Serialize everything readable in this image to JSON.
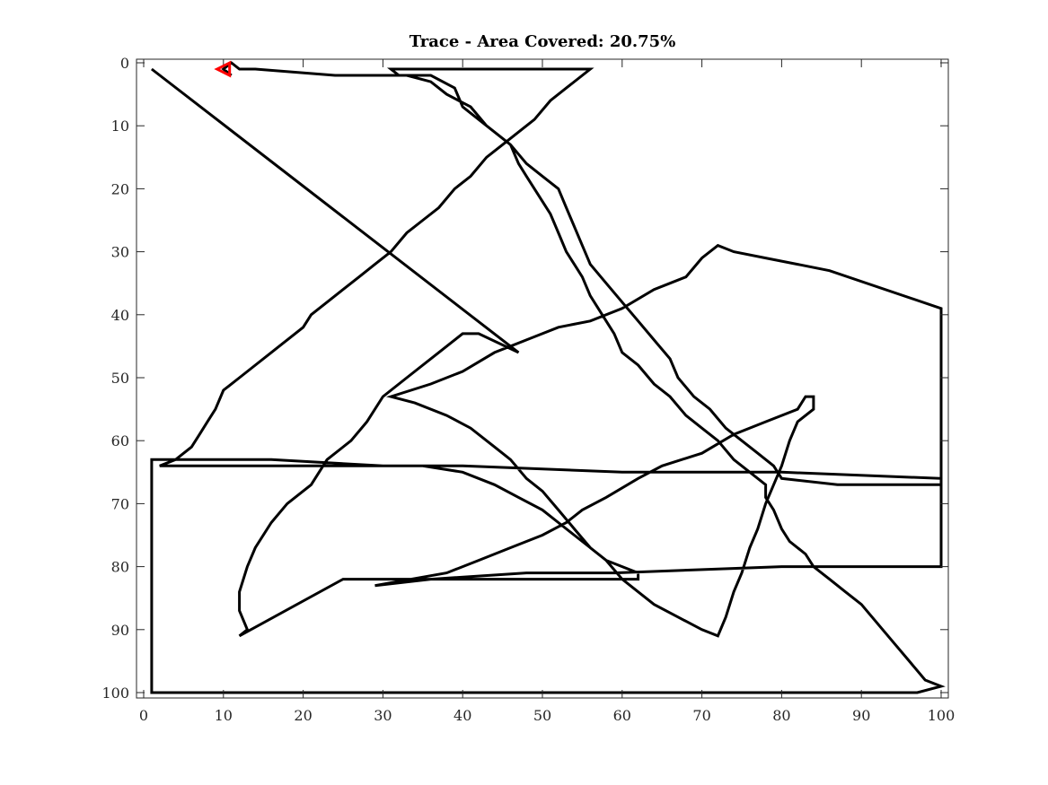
{
  "chart_data": {
    "type": "line",
    "title": "Trace - Area Covered: 20.75%",
    "xlabel": "",
    "ylabel": "",
    "xlim": [
      0,
      100
    ],
    "ylim": [
      0,
      100
    ],
    "y_reversed": true,
    "grid": false,
    "x_ticks": [
      0,
      10,
      20,
      30,
      40,
      50,
      60,
      70,
      80,
      90,
      100
    ],
    "y_ticks": [
      0,
      10,
      20,
      30,
      40,
      50,
      60,
      70,
      80,
      90,
      100
    ],
    "line_color": "#000000",
    "marker_color": "#ff0000",
    "series": [
      {
        "points": [
          [
            47,
            46
          ],
          [
            1,
            1
          ],
          [
            47,
            46
          ],
          [
            42,
            43
          ],
          [
            40,
            43
          ],
          [
            37,
            46
          ],
          [
            33,
            50
          ],
          [
            30,
            53
          ],
          [
            28,
            57
          ],
          [
            26,
            60
          ],
          [
            23,
            63
          ],
          [
            21,
            67
          ],
          [
            18,
            70
          ],
          [
            16,
            73
          ],
          [
            14,
            77
          ],
          [
            13,
            80
          ],
          [
            12,
            84
          ],
          [
            12,
            87
          ],
          [
            13,
            90
          ],
          [
            12,
            91
          ],
          [
            25,
            82
          ],
          [
            47,
            82
          ],
          [
            62,
            82
          ],
          [
            62,
            81
          ],
          [
            58,
            79
          ],
          [
            56,
            77
          ],
          [
            54,
            74
          ],
          [
            52,
            71
          ],
          [
            50,
            68
          ],
          [
            48,
            66
          ],
          [
            46,
            63
          ],
          [
            44,
            61
          ],
          [
            41,
            58
          ],
          [
            38,
            56
          ],
          [
            34,
            54
          ],
          [
            31,
            53
          ],
          [
            36,
            51
          ],
          [
            40,
            49
          ],
          [
            44,
            46
          ],
          [
            48,
            44
          ],
          [
            52,
            42
          ],
          [
            56,
            41
          ],
          [
            60,
            39
          ],
          [
            64,
            36
          ],
          [
            66,
            35
          ],
          [
            68,
            34
          ],
          [
            70,
            31
          ],
          [
            72,
            29
          ],
          [
            74,
            30
          ],
          [
            78,
            31
          ],
          [
            82,
            32
          ],
          [
            86,
            33
          ],
          [
            100,
            39
          ],
          [
            100,
            80
          ],
          [
            80,
            80
          ],
          [
            59,
            81
          ],
          [
            48,
            81
          ],
          [
            36,
            82
          ],
          [
            29,
            83
          ],
          [
            38,
            81
          ],
          [
            42,
            79
          ],
          [
            46,
            77
          ],
          [
            50,
            75
          ],
          [
            53,
            73
          ],
          [
            55,
            71
          ],
          [
            58,
            69
          ],
          [
            62,
            66
          ],
          [
            65,
            64
          ],
          [
            70,
            62
          ],
          [
            74,
            59
          ],
          [
            78,
            57
          ],
          [
            82,
            55
          ],
          [
            83,
            53
          ],
          [
            84,
            53
          ],
          [
            84,
            55
          ],
          [
            82,
            57
          ],
          [
            81,
            60
          ],
          [
            80,
            64
          ],
          [
            79,
            67
          ],
          [
            78,
            70
          ],
          [
            77,
            74
          ],
          [
            76,
            77
          ],
          [
            75,
            81
          ],
          [
            74,
            84
          ],
          [
            73,
            88
          ],
          [
            72,
            91
          ],
          [
            70,
            90
          ],
          [
            67,
            88
          ],
          [
            64,
            86
          ],
          [
            62,
            84
          ],
          [
            60,
            82
          ],
          [
            58,
            79
          ],
          [
            56,
            77
          ],
          [
            54,
            75
          ],
          [
            52,
            73
          ],
          [
            50,
            71
          ],
          [
            47,
            69
          ],
          [
            44,
            67
          ],
          [
            40,
            65
          ],
          [
            35,
            64
          ],
          [
            30,
            64
          ],
          [
            16,
            63
          ],
          [
            1,
            63
          ],
          [
            1,
            100
          ],
          [
            97,
            100
          ],
          [
            100,
            99
          ],
          [
            98,
            98
          ],
          [
            96,
            95
          ],
          [
            94,
            92
          ],
          [
            92,
            89
          ],
          [
            90,
            86
          ],
          [
            88,
            84
          ],
          [
            86,
            82
          ],
          [
            84,
            80
          ],
          [
            83,
            78
          ],
          [
            81,
            76
          ],
          [
            80,
            74
          ],
          [
            79,
            71
          ],
          [
            78,
            69
          ],
          [
            78,
            67
          ],
          [
            76,
            65
          ],
          [
            74,
            63
          ],
          [
            72,
            60
          ],
          [
            70,
            58
          ],
          [
            68,
            56
          ],
          [
            66,
            53
          ],
          [
            64,
            51
          ],
          [
            62,
            48
          ],
          [
            60,
            46
          ],
          [
            59,
            43
          ],
          [
            58,
            41
          ],
          [
            57,
            39
          ],
          [
            56,
            37
          ],
          [
            55,
            34
          ],
          [
            54,
            32
          ],
          [
            53,
            30
          ],
          [
            52,
            27
          ],
          [
            51,
            24
          ],
          [
            50,
            22
          ],
          [
            49,
            20
          ],
          [
            48,
            18
          ],
          [
            47,
            16
          ],
          [
            46,
            13
          ],
          [
            44,
            11
          ],
          [
            42,
            9
          ],
          [
            40,
            7
          ],
          [
            39,
            4
          ],
          [
            36,
            2
          ],
          [
            32,
            2
          ],
          [
            31,
            1
          ],
          [
            56,
            1
          ],
          [
            53,
            4
          ],
          [
            51,
            6
          ],
          [
            49,
            9
          ],
          [
            47,
            11
          ],
          [
            45,
            13
          ],
          [
            43,
            15
          ],
          [
            41,
            18
          ],
          [
            39,
            20
          ],
          [
            37,
            23
          ],
          [
            35,
            25
          ],
          [
            33,
            27
          ],
          [
            31,
            30
          ],
          [
            29,
            32
          ],
          [
            27,
            34
          ],
          [
            25,
            36
          ],
          [
            23,
            38
          ],
          [
            21,
            40
          ],
          [
            20,
            42
          ],
          [
            18,
            44
          ],
          [
            16,
            46
          ],
          [
            14,
            48
          ],
          [
            12,
            50
          ],
          [
            10,
            52
          ],
          [
            9,
            55
          ],
          [
            8,
            57
          ],
          [
            7,
            59
          ],
          [
            6,
            61
          ],
          [
            4,
            63
          ],
          [
            2,
            64
          ],
          [
            16,
            64
          ],
          [
            40,
            64
          ],
          [
            60,
            65
          ],
          [
            80,
            65
          ],
          [
            100,
            66
          ],
          [
            100,
            67
          ],
          [
            93,
            67
          ],
          [
            87,
            67
          ],
          [
            80,
            66
          ],
          [
            79,
            64
          ],
          [
            77,
            62
          ],
          [
            75,
            60
          ],
          [
            73,
            58
          ],
          [
            71,
            55
          ],
          [
            69,
            53
          ],
          [
            67,
            50
          ],
          [
            66,
            47
          ],
          [
            64,
            44
          ],
          [
            62,
            41
          ],
          [
            60,
            38
          ],
          [
            58,
            35
          ],
          [
            56,
            32
          ],
          [
            55,
            29
          ],
          [
            54,
            26
          ],
          [
            53,
            23
          ],
          [
            52,
            20
          ],
          [
            50,
            18
          ],
          [
            48,
            16
          ],
          [
            46,
            13
          ],
          [
            43,
            10
          ],
          [
            41,
            7
          ],
          [
            38,
            5
          ],
          [
            36,
            3
          ],
          [
            33,
            2
          ],
          [
            24,
            2
          ],
          [
            14,
            1
          ],
          [
            12,
            1
          ],
          [
            11,
            0
          ],
          [
            10,
            1
          ],
          [
            11,
            2
          ]
        ]
      }
    ]
  }
}
